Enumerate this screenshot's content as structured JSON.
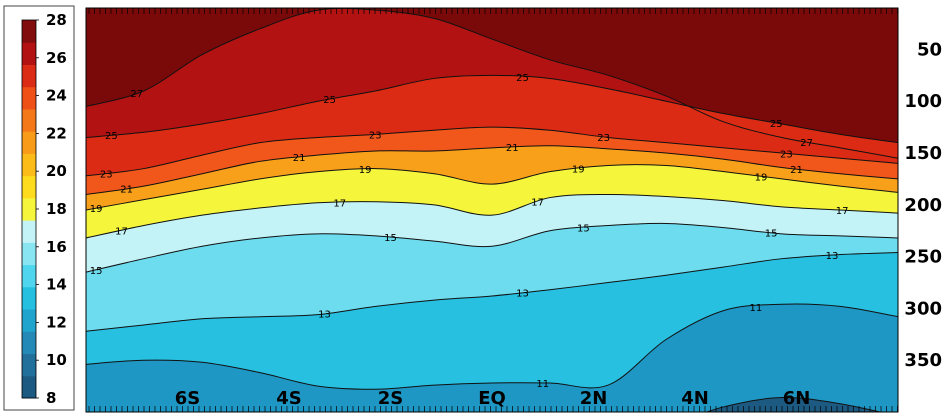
{
  "chart_data": {
    "type": "contour",
    "title": "",
    "xlabel": "",
    "ylabel": "",
    "x_ticks": [
      {
        "label": "6S",
        "value": -6
      },
      {
        "label": "4S",
        "value": -4
      },
      {
        "label": "2S",
        "value": -2
      },
      {
        "label": "EQ",
        "value": 0
      },
      {
        "label": "2N",
        "value": 2
      },
      {
        "label": "4N",
        "value": 4
      },
      {
        "label": "6N",
        "value": 6
      }
    ],
    "xlim": [
      -8,
      8
    ],
    "y_ticks": [
      50,
      100,
      150,
      200,
      250,
      300,
      350
    ],
    "ylim": [
      400,
      10
    ],
    "y_inverted": true,
    "colorbar": {
      "levels": [
        8,
        10,
        12,
        14,
        16,
        18,
        20,
        22,
        24,
        26,
        28
      ],
      "labels": [
        "28",
        "26",
        "24",
        "22",
        "20",
        "18",
        "16",
        "14",
        "12",
        "10",
        "8"
      ],
      "colors": [
        "#1c5a82",
        "#216f9b",
        "#2489b6",
        "#1ea4cd",
        "#25bfe0",
        "#4fd6ee",
        "#8ae5f3",
        "#c3f2f7",
        "#f5f53c",
        "#fddc1d",
        "#fbbb19",
        "#f79b18",
        "#f47718",
        "#ef5016",
        "#dc2b14",
        "#b21212",
        "#820d0d"
      ]
    },
    "contour_levels": [
      11,
      13,
      15,
      17,
      19,
      21,
      23,
      25,
      27
    ],
    "contours": [
      {
        "level": 27,
        "pressure": [
          105,
          90,
          55,
          30,
          12,
          12,
          20,
          40,
          60,
          75,
          95,
          120,
          135,
          145,
          155
        ],
        "labels": [
          {
            "x": -7.0,
            "text": "27"
          },
          {
            "x": 6.2,
            "text": "27"
          }
        ]
      },
      {
        "level": 25,
        "pressure": [
          135,
          130,
          122,
          112,
          100,
          90,
          78,
          75,
          78,
          88,
          100,
          112,
          122,
          132,
          140
        ],
        "labels": [
          {
            "x": -7.5,
            "text": "25"
          },
          {
            "x": -3.2,
            "text": "25"
          },
          {
            "x": 0.6,
            "text": "25"
          },
          {
            "x": 5.6,
            "text": "25"
          }
        ]
      },
      {
        "level": 23,
        "pressure": [
          172,
          165,
          152,
          140,
          135,
          132,
          128,
          125,
          128,
          135,
          140,
          145,
          150,
          155,
          160
        ],
        "labels": [
          {
            "x": -7.6,
            "text": "23"
          },
          {
            "x": -2.3,
            "text": "23"
          },
          {
            "x": 2.2,
            "text": "23"
          },
          {
            "x": 5.8,
            "text": "23"
          }
        ]
      },
      {
        "level": 21,
        "pressure": [
          190,
          182,
          170,
          158,
          152,
          148,
          148,
          145,
          143,
          146,
          150,
          156,
          164,
          170,
          175
        ],
        "labels": [
          {
            "x": -7.2,
            "text": "21"
          },
          {
            "x": -3.8,
            "text": "21"
          },
          {
            "x": 0.4,
            "text": "21"
          },
          {
            "x": 6.0,
            "text": "21"
          }
        ]
      },
      {
        "level": 19,
        "pressure": [
          205,
          195,
          185,
          175,
          168,
          165,
          170,
          180,
          168,
          162,
          162,
          168,
          175,
          182,
          188
        ],
        "labels": [
          {
            "x": -7.8,
            "text": "19"
          },
          {
            "x": -2.5,
            "text": "19"
          },
          {
            "x": 1.7,
            "text": "19"
          },
          {
            "x": 5.3,
            "text": "19"
          }
        ]
      },
      {
        "level": 17,
        "pressure": [
          232,
          220,
          210,
          203,
          198,
          197,
          200,
          210,
          193,
          190,
          192,
          196,
          202,
          205,
          208
        ],
        "labels": [
          {
            "x": -7.3,
            "text": "17"
          },
          {
            "x": -3.0,
            "text": "17"
          },
          {
            "x": 0.9,
            "text": "17"
          },
          {
            "x": 6.9,
            "text": "17"
          }
        ]
      },
      {
        "level": 15,
        "pressure": [
          265,
          252,
          240,
          232,
          228,
          230,
          235,
          240,
          225,
          220,
          218,
          222,
          228,
          230,
          232
        ],
        "labels": [
          {
            "x": -7.8,
            "text": "15"
          },
          {
            "x": -2.0,
            "text": "15"
          },
          {
            "x": 1.8,
            "text": "15"
          },
          {
            "x": 5.5,
            "text": "15"
          }
        ]
      },
      {
        "level": 13,
        "pressure": [
          322,
          316,
          310,
          308,
          306,
          298,
          292,
          288,
          282,
          275,
          268,
          260,
          252,
          248,
          246
        ],
        "labels": [
          {
            "x": -3.3,
            "text": "13"
          },
          {
            "x": 0.6,
            "text": "13"
          },
          {
            "x": 6.7,
            "text": "13"
          }
        ]
      },
      {
        "level": 11,
        "pressure": [
          354,
          350,
          352,
          362,
          375,
          378,
          374,
          372,
          372,
          374,
          330,
          302,
          296,
          298,
          308
        ],
        "labels": [
          {
            "x": 1.0,
            "text": "11"
          },
          {
            "x": 5.2,
            "text": "11"
          }
        ]
      },
      {
        "level": 11,
        "pressure": [
          412,
          412,
          412,
          412,
          412,
          412,
          412,
          412,
          412,
          412,
          412,
          395,
          386,
          392,
          404
        ],
        "labels": []
      }
    ],
    "contour_x": [
      -8,
      -6.86,
      -5.71,
      -4.57,
      -3.43,
      -2.29,
      -1.14,
      0,
      1.14,
      2.29,
      3.43,
      4.57,
      5.71,
      6.86,
      8
    ]
  }
}
